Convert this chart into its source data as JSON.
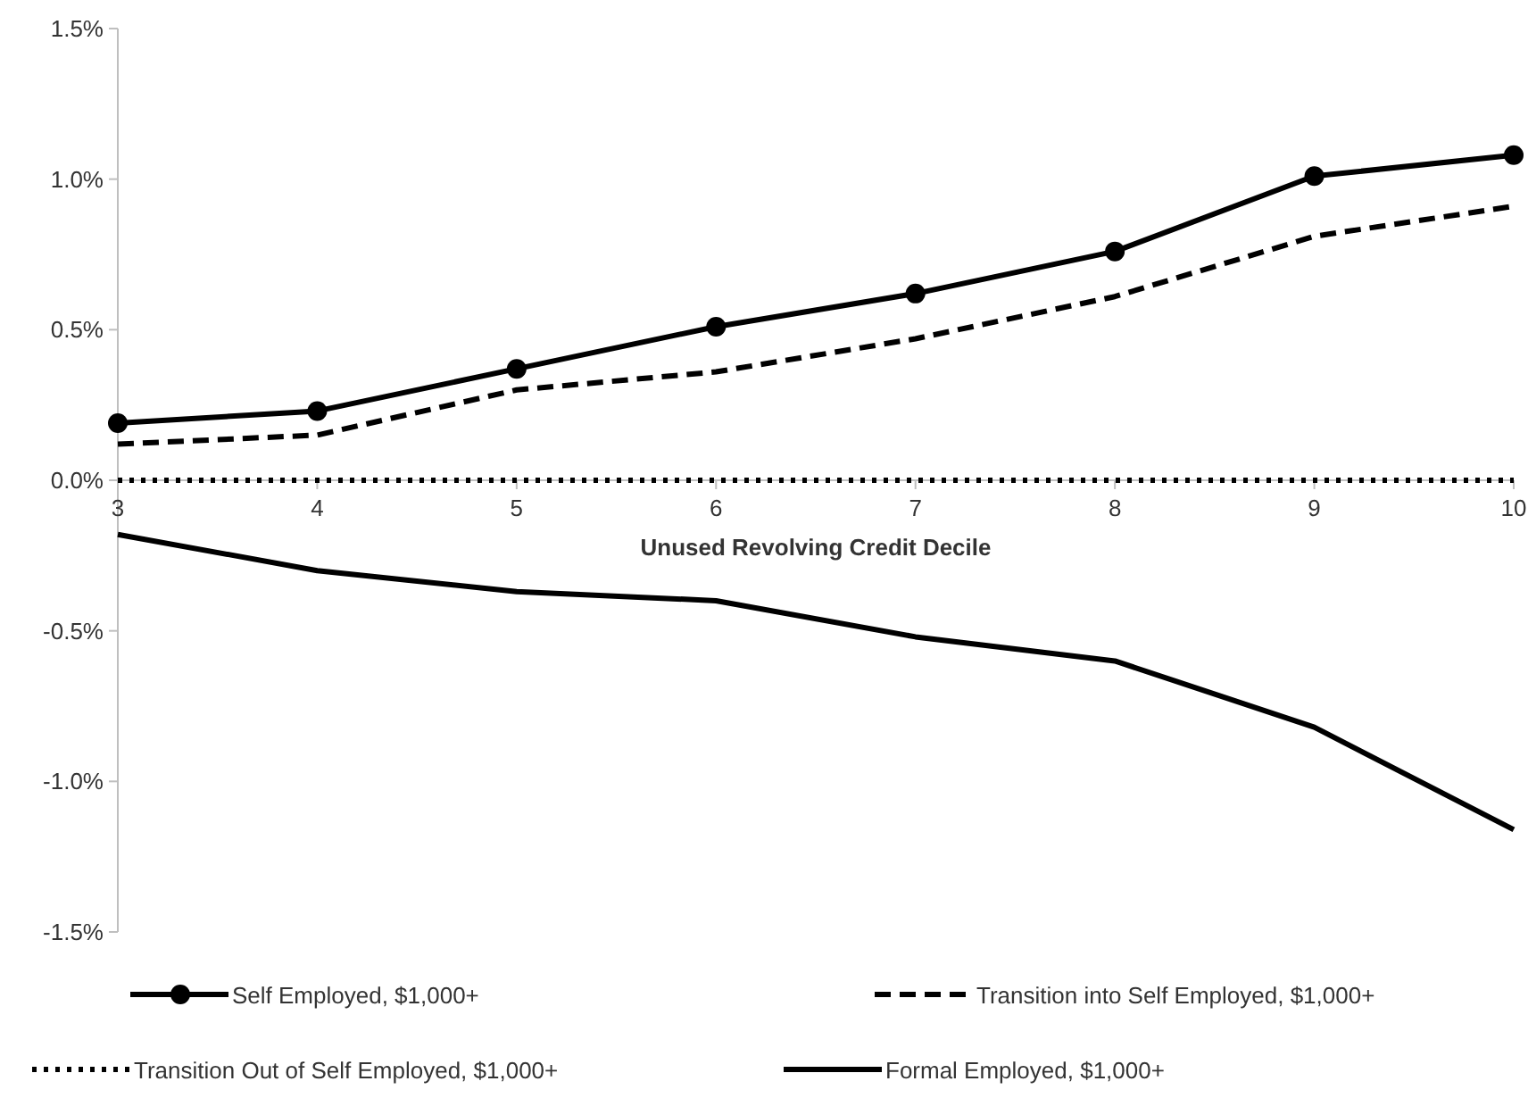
{
  "chart_data": {
    "type": "line",
    "xlabel": "Unused Revolving Credit Decile",
    "x": [
      3,
      4,
      5,
      6,
      7,
      8,
      9,
      10
    ],
    "xlim": [
      3,
      10
    ],
    "xticks": [
      3,
      4,
      5,
      6,
      7,
      8,
      9,
      10
    ],
    "ylim": [
      -1.5,
      1.5
    ],
    "yticks": [
      {
        "value": -1.5,
        "label": "-1.5%"
      },
      {
        "value": -1,
        "label": "-1.0%"
      },
      {
        "value": -0.5,
        "label": "-0.5%"
      },
      {
        "value": 0,
        "label": "0.0%"
      },
      {
        "value": 0.5,
        "label": "0.5%"
      },
      {
        "value": 1,
        "label": "1.0%"
      },
      {
        "value": 1.5,
        "label": "1.5%"
      }
    ],
    "grid": false,
    "legend": "bottom",
    "series": [
      {
        "name": "Self Employed, $1,000+",
        "color": "#000000",
        "marker": "circle",
        "line_style": "solid",
        "values": [
          0.19,
          0.23,
          0.37,
          0.51,
          0.62,
          0.76,
          1.01,
          1.08
        ]
      },
      {
        "name": "Transition into Self Employed, $1,000+",
        "color": "#000000",
        "marker": "none",
        "line_style": "dashed",
        "values": [
          0.12,
          0.15,
          0.3,
          0.36,
          0.47,
          0.61,
          0.81,
          0.91
        ]
      },
      {
        "name": "Transition Out of Self Employed, $1,000+",
        "color": "#000000",
        "marker": "none",
        "line_style": "dotted",
        "values": [
          0,
          0,
          0,
          0,
          0,
          0,
          0,
          0
        ]
      },
      {
        "name": "Formal Employed, $1,000+",
        "color": "#000000",
        "marker": "none",
        "line_style": "solid",
        "values": [
          -0.18,
          -0.3,
          -0.37,
          -0.4,
          -0.52,
          -0.6,
          -0.82,
          -1.16
        ]
      }
    ]
  }
}
